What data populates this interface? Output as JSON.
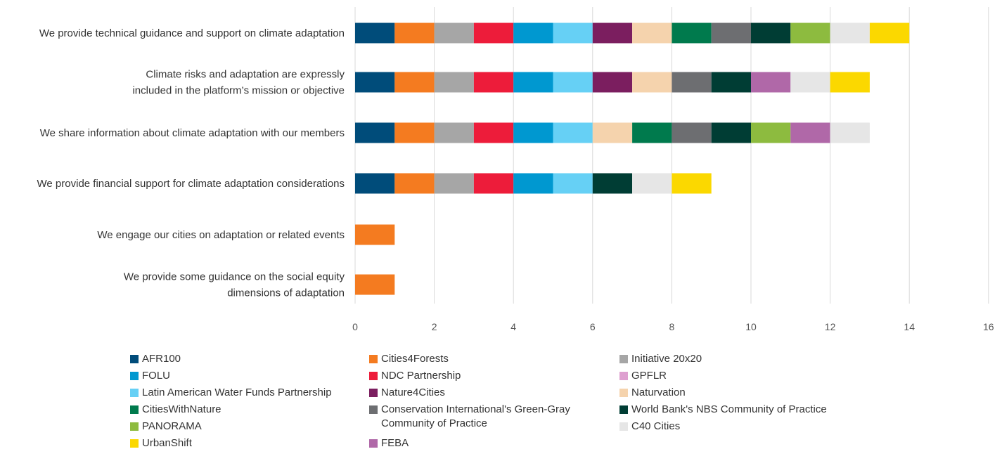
{
  "chart_data": {
    "type": "bar",
    "orientation": "horizontal",
    "stacked": true,
    "title": "",
    "xlabel": "",
    "ylabel": "",
    "xlim": [
      0,
      16
    ],
    "x_ticks": [
      "0",
      "2",
      "4",
      "6",
      "8",
      "10",
      "12",
      "14",
      "16"
    ],
    "grid": "vertical",
    "legend_position": "bottom",
    "categories": [
      "We provide technical guidance and support on climate adaptation",
      "Climate risks and adaptation are expressly\nincluded in the platform’s mission or objective",
      "We share information about climate adaptation with our members",
      "We provide financial support for climate adaptation considerations",
      "We engage our cities on adaptation or related events",
      "We provide some guidance on the social equity\ndimensions of adaptation"
    ],
    "series": [
      {
        "name": "AFR100",
        "color": "#004c7a",
        "values": [
          1,
          1,
          1,
          1,
          0,
          0
        ]
      },
      {
        "name": "Cities4Forests",
        "color": "#f47b20",
        "values": [
          1,
          1,
          1,
          1,
          1,
          1
        ]
      },
      {
        "name": "Initiative 20x20",
        "color": "#a6a6a6",
        "values": [
          1,
          1,
          1,
          1,
          0,
          0
        ]
      },
      {
        "name": "NDC Partnership",
        "color": "#ed1c3a",
        "values": [
          1,
          1,
          1,
          1,
          0,
          0
        ]
      },
      {
        "name": "FOLU",
        "color": "#0098d0",
        "values": [
          1,
          1,
          1,
          1,
          0,
          0
        ]
      },
      {
        "name": "Latin American Water Funds Partnership",
        "color": "#66d0f5",
        "values": [
          1,
          1,
          1,
          1,
          0,
          0
        ]
      },
      {
        "name": "Nature4Cities",
        "color": "#7b1e5f",
        "values": [
          1,
          1,
          0,
          0,
          0,
          0
        ]
      },
      {
        "name": "Naturvation",
        "color": "#f5d3ad",
        "values": [
          1,
          1,
          1,
          0,
          0,
          0
        ]
      },
      {
        "name": "CitiesWithNature",
        "color": "#007a4d",
        "values": [
          1,
          0,
          1,
          0,
          0,
          0
        ]
      },
      {
        "name": "Conservation International's Green-Gray\nCommunity of Practice",
        "color": "#6d6e71",
        "values": [
          1,
          1,
          1,
          0,
          0,
          0
        ]
      },
      {
        "name": "World Bank's NBS Community of Practice",
        "color": "#003d34",
        "values": [
          1,
          1,
          1,
          1,
          0,
          0
        ]
      },
      {
        "name": "PANORAMA",
        "color": "#8dbb3f",
        "values": [
          1,
          0,
          1,
          0,
          0,
          0
        ]
      },
      {
        "name": "FEBA",
        "color": "#b068a8",
        "values": [
          0,
          1,
          1,
          0,
          0,
          0
        ]
      },
      {
        "name": "C40 Cities",
        "color": "#e6e6e6",
        "values": [
          1,
          1,
          1,
          1,
          0,
          0
        ]
      },
      {
        "name": "UrbanShift",
        "color": "#fbd800",
        "values": [
          1,
          1,
          0,
          1,
          0,
          0
        ]
      },
      {
        "name": "GPFLR",
        "color": "#dea0d0",
        "values": [
          0,
          0,
          0,
          0,
          0,
          0
        ]
      }
    ],
    "legend_order": [
      "AFR100",
      "Cities4Forests",
      "Initiative 20x20",
      "FOLU",
      "NDC Partnership",
      "GPFLR",
      "Latin American Water Funds Partnership",
      "Nature4Cities",
      "Naturvation",
      "CitiesWithNature",
      "Conservation International's Green-Gray\nCommunity of Practice",
      "World Bank's NBS Community of Practice",
      "PANORAMA",
      "C40 Cities",
      "UrbanShift",
      "FEBA"
    ]
  }
}
